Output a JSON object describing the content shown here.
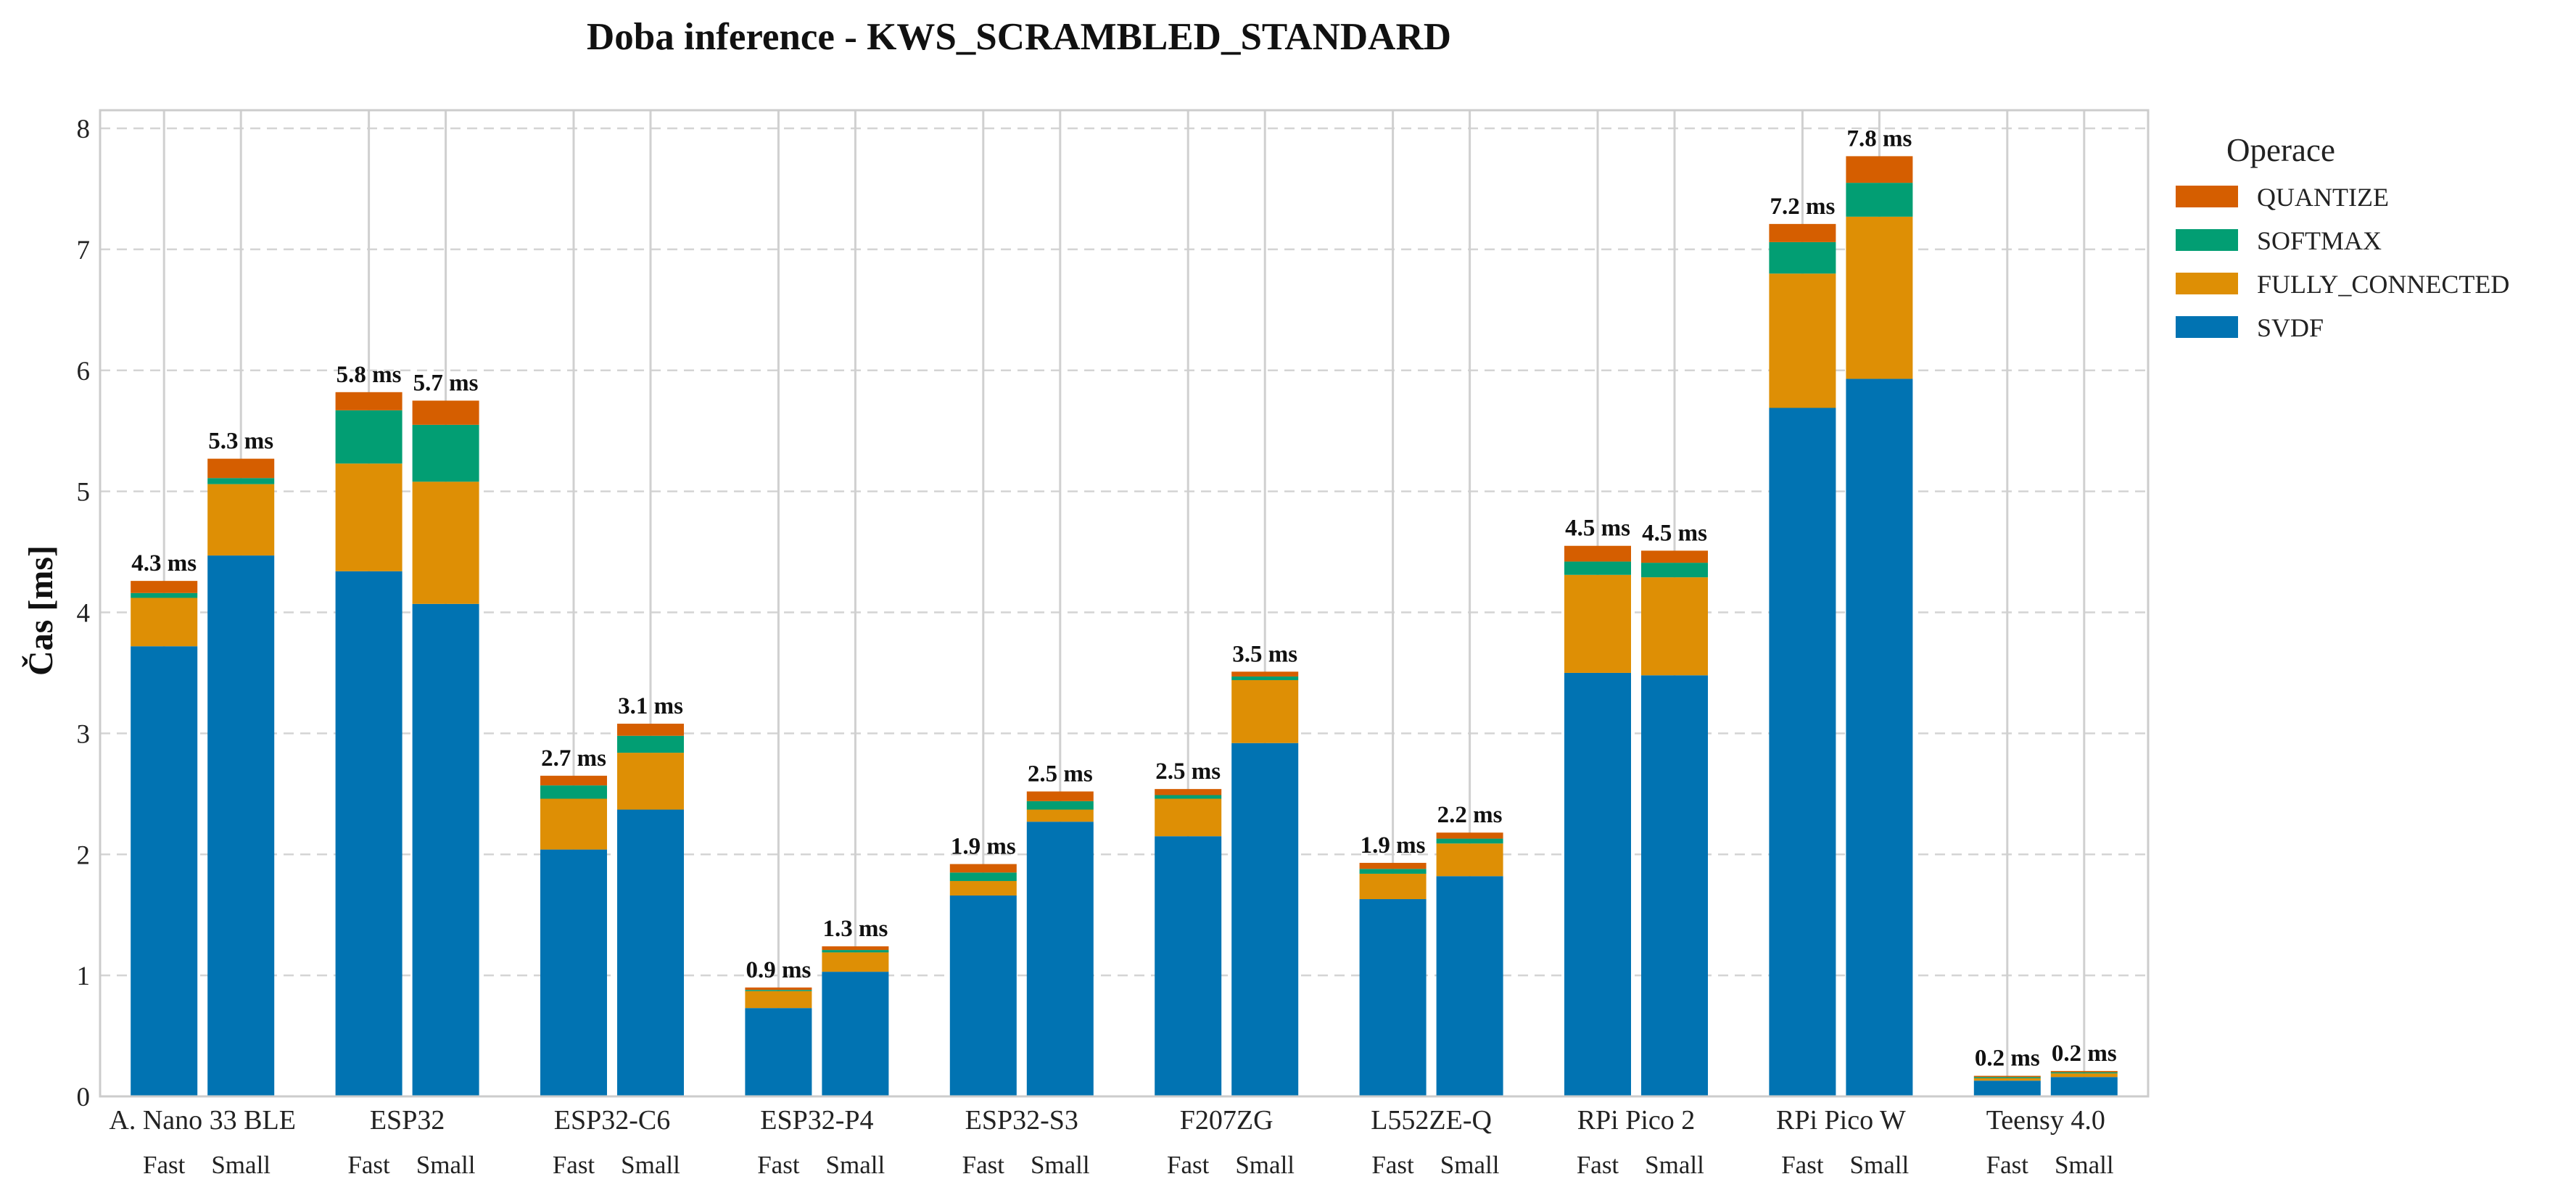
{
  "chart_data": {
    "type": "bar",
    "stacked": true,
    "title": "Doba inference - KWS_SCRAMBLED_STANDARD",
    "ylabel": "Čas [ms]",
    "xlabel": "",
    "ylim": [
      0,
      8.15
    ],
    "yticks": [
      "0",
      "1",
      "2",
      "3",
      "4",
      "5",
      "6",
      "7",
      "8"
    ],
    "grid": true,
    "legend_position": "outside-right",
    "legend_title": "Operace",
    "legend_order": [
      "QUANTIZE",
      "SOFTMAX",
      "FULLY_CONNECTED",
      "SVDF"
    ],
    "sub_categories": [
      "Fast",
      "Small"
    ],
    "groups": [
      "A. Nano 33 BLE",
      "ESP32",
      "ESP32-C6",
      "ESP32-P4",
      "ESP32-S3",
      "F207ZG",
      "L552ZE-Q",
      "RPi Pico 2",
      "RPi Pico W",
      "Teensy 4.0"
    ],
    "series": [
      {
        "name": "SVDF",
        "color": "#0173b2",
        "values": [
          [
            3.72,
            4.47
          ],
          [
            4.34,
            4.07
          ],
          [
            2.04,
            2.37
          ],
          [
            0.73,
            1.03
          ],
          [
            1.66,
            2.27
          ],
          [
            2.15,
            2.92
          ],
          [
            1.63,
            1.82
          ],
          [
            3.5,
            3.48
          ],
          [
            5.69,
            5.93
          ],
          [
            0.13,
            0.16
          ]
        ]
      },
      {
        "name": "FULLY_CONNECTED",
        "color": "#de8f05",
        "values": [
          [
            0.4,
            0.59
          ],
          [
            0.89,
            1.01
          ],
          [
            0.42,
            0.47
          ],
          [
            0.14,
            0.16
          ],
          [
            0.12,
            0.1
          ],
          [
            0.31,
            0.52
          ],
          [
            0.21,
            0.27
          ],
          [
            0.81,
            0.81
          ],
          [
            1.11,
            1.34
          ],
          [
            0.02,
            0.03
          ]
        ]
      },
      {
        "name": "SOFTMAX",
        "color": "#029e73",
        "values": [
          [
            0.04,
            0.05
          ],
          [
            0.44,
            0.47
          ],
          [
            0.11,
            0.14
          ],
          [
            0.01,
            0.02
          ],
          [
            0.07,
            0.07
          ],
          [
            0.03,
            0.03
          ],
          [
            0.04,
            0.04
          ],
          [
            0.11,
            0.12
          ],
          [
            0.26,
            0.28
          ],
          [
            0.01,
            0.01
          ]
        ]
      },
      {
        "name": "QUANTIZE",
        "color": "#d55e00",
        "values": [
          [
            0.1,
            0.16
          ],
          [
            0.15,
            0.2
          ],
          [
            0.08,
            0.1
          ],
          [
            0.02,
            0.03
          ],
          [
            0.07,
            0.08
          ],
          [
            0.05,
            0.04
          ],
          [
            0.05,
            0.05
          ],
          [
            0.13,
            0.1
          ],
          [
            0.15,
            0.22
          ],
          [
            0.01,
            0.01
          ]
        ]
      }
    ],
    "totals_labels": [
      [
        "4.3 ms",
        "5.3 ms"
      ],
      [
        "5.8 ms",
        "5.7 ms"
      ],
      [
        "2.7 ms",
        "3.1 ms"
      ],
      [
        "0.9 ms",
        "1.3 ms"
      ],
      [
        "1.9 ms",
        "2.5 ms"
      ],
      [
        "2.5 ms",
        "3.5 ms"
      ],
      [
        "1.9 ms",
        "2.2 ms"
      ],
      [
        "4.5 ms",
        "4.5 ms"
      ],
      [
        "7.2 ms",
        "7.8 ms"
      ],
      [
        "0.2 ms",
        "0.2 ms"
      ]
    ]
  }
}
